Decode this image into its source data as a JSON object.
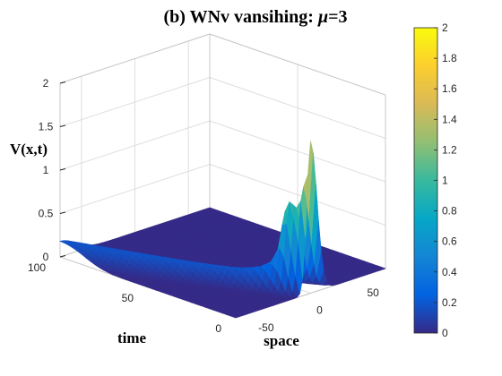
{
  "chart_data": {
    "type": "surface",
    "title": {
      "prefix": "(b) WNv vansihing: ",
      "symbol": "μ",
      "suffix": "=3"
    },
    "xlabel": "space",
    "ylabel": "time",
    "zlabel": "V(x,t)",
    "xlim": [
      -70,
      70
    ],
    "ylim": [
      0,
      100
    ],
    "zlim": [
      0,
      2
    ],
    "x_ticks": [
      "-50",
      "0",
      "50"
    ],
    "x_tick_values": [
      -50,
      0,
      50
    ],
    "y_ticks": [
      "0",
      "50",
      "100"
    ],
    "y_tick_values": [
      0,
      50,
      100
    ],
    "z_ticks": [
      "0",
      "0.5",
      "1",
      "1.5",
      "2"
    ],
    "z_tick_values": [
      0,
      0.5,
      1,
      1.5,
      2
    ],
    "colorbar": {
      "ticks": [
        "0",
        "0.2",
        "0.4",
        "0.6",
        "0.8",
        "1",
        "1.2",
        "1.4",
        "1.6",
        "1.8",
        "2"
      ],
      "tick_values": [
        0,
        0.2,
        0.4,
        0.6,
        0.8,
        1,
        1.2,
        1.4,
        1.6,
        1.8,
        2
      ],
      "colormap": "parula",
      "range": [
        0,
        2
      ]
    },
    "surface_features": {
      "peak_value": 1.75,
      "peak_location": {
        "x": 0,
        "t": 0
      },
      "ridge_value_at_t100": 0.18,
      "ridge_position": "x = 0 at t = 0, shifting toward x = -70 as t increases",
      "secondary_peak_value": 0.9
    },
    "grid": true,
    "colors": {
      "parula_stops": [
        "#352a87",
        "#0363e1",
        "#1485d4",
        "#06a7c6",
        "#38b99e",
        "#92bf73",
        "#d9ba56",
        "#fcce2e",
        "#f9fb0e"
      ]
    }
  }
}
